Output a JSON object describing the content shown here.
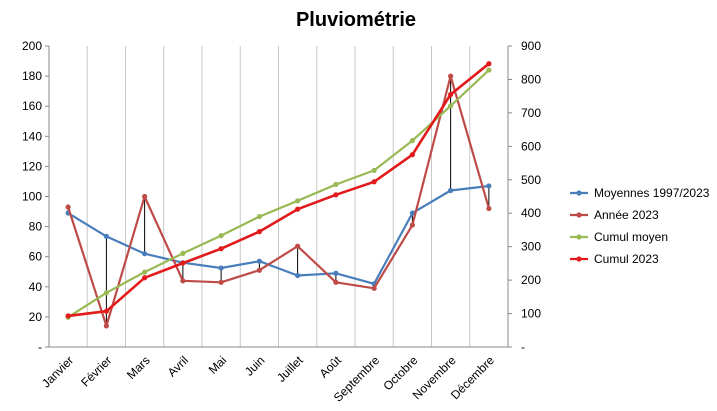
{
  "chart_data": {
    "type": "line",
    "title": "Pluviométrie",
    "categories": [
      "Janvier",
      "Février",
      "Mars",
      "Avril",
      "Mai",
      "Juin",
      "Juillet",
      "Août",
      "Septembre",
      "Octobre",
      "Novembre",
      "Décembre"
    ],
    "y_left": {
      "min": 0,
      "max": 200,
      "step": 20,
      "ticks": [
        "-",
        "20",
        "40",
        "60",
        "80",
        "100",
        "120",
        "140",
        "160",
        "180",
        "200"
      ]
    },
    "y_right": {
      "min": 0,
      "max": 900,
      "step": 100,
      "ticks": [
        "-",
        "100",
        "200",
        "300",
        "400",
        "500",
        "600",
        "700",
        "800",
        "900"
      ]
    },
    "grid": "vertical",
    "legend_position": "right",
    "series": [
      {
        "name": "Moyennes 1997/2023",
        "axis": "left",
        "color": "#4a7ebb",
        "values": [
          89,
          73.5,
          62,
          56,
          52.5,
          57,
          47.5,
          49,
          42,
          89,
          104,
          107
        ]
      },
      {
        "name": "Année 2023",
        "axis": "left",
        "color": "#be4b48",
        "values": [
          93,
          14,
          100,
          44,
          43,
          51,
          67,
          43,
          39,
          81,
          180,
          92
        ]
      },
      {
        "name": "Cumul moyen",
        "axis": "right",
        "color": "#98b954",
        "values": [
          89,
          162,
          224,
          280,
          333,
          390,
          437,
          486,
          528,
          617,
          721,
          828
        ]
      },
      {
        "name": "Cumul 2023",
        "axis": "right",
        "color": "#e31a1c",
        "values": [
          93,
          107,
          207,
          251,
          294,
          345,
          412,
          455,
          494,
          575,
          755,
          847
        ]
      }
    ]
  }
}
